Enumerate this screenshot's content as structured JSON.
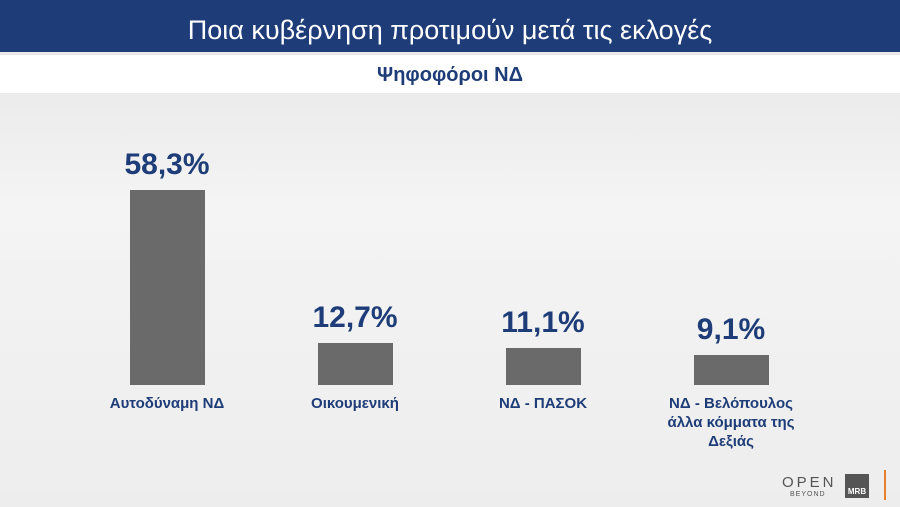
{
  "chart_data": {
    "type": "bar",
    "title": "Ποια κυβέρνηση προτιμούν μετά τις εκλογές",
    "subtitle": "Ψηφοφόροι ΝΔ",
    "categories": [
      "Αυτοδύναμη ΝΔ",
      "Οικουμενική",
      "ΝΔ - ΠΑΣΟΚ",
      "ΝΔ - Βελόπουλος άλλα κόμματα της Δεξιάς"
    ],
    "values": [
      58.3,
      12.7,
      11.1,
      9.1
    ],
    "value_labels": [
      "58,3%",
      "12,7%",
      "11,1%",
      "9,1%"
    ],
    "color": "#6a6a6a"
  },
  "branding": {
    "channel": "OPEN",
    "tagline": "BEYOND",
    "pollster": "MRB"
  }
}
